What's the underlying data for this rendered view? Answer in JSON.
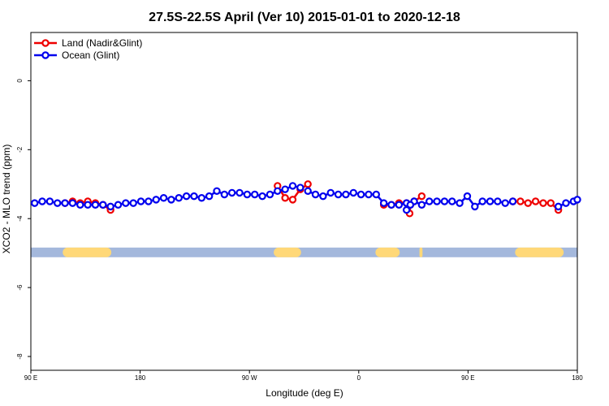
{
  "chart_data": {
    "type": "line",
    "title": "27.5S-22.5S April (Ver 10)   2015-01-01 to 2020-12-18",
    "xlabel": "Longitude (deg E)",
    "ylabel": "XCO2 - MLO trend (ppm)",
    "xlim": [
      90,
      450
    ],
    "ylim": [
      -8.4,
      1.4
    ],
    "x_ticks": [
      {
        "value": 90,
        "label": "90 E"
      },
      {
        "value": 162,
        "label": "180"
      },
      {
        "value": 234,
        "label": "90 W"
      },
      {
        "value": 306,
        "label": "0"
      },
      {
        "value": 378,
        "label": "90 E"
      },
      {
        "value": 450,
        "label": "180"
      }
    ],
    "y_ticks": [
      {
        "value": 0,
        "label": "0"
      },
      {
        "value": -2,
        "label": "-2"
      },
      {
        "value": -4,
        "label": "-4"
      },
      {
        "value": -6,
        "label": "-6"
      },
      {
        "value": -8,
        "label": "-8"
      }
    ],
    "legend": {
      "position": "top-left",
      "entries": [
        {
          "name": "Land (Nadir&Glint)",
          "color": "#ee0000"
        },
        {
          "name": "Ocean (Glint)",
          "color": "#0000ee"
        }
      ]
    },
    "colors": {
      "land": "#ee0000",
      "ocean": "#0000ee",
      "land_mask": "#ffd878",
      "ocean_mask": "#a4b8dc"
    },
    "mask_band": {
      "y_range": [
        -4.84,
        -5.12
      ],
      "land_segments": [
        [
          111,
          143
        ],
        [
          250,
          268
        ],
        [
          317,
          333
        ],
        [
          346,
          348
        ],
        [
          409,
          441
        ]
      ]
    },
    "series": [
      {
        "name": "Land (Nadir&Glint)",
        "color": "#ee0000",
        "segments": [
          [
            [
              112.5,
              -3.55
            ],
            [
              117.5,
              -3.5
            ],
            [
              122.5,
              -3.55
            ],
            [
              127.5,
              -3.5
            ],
            [
              132.5,
              -3.55
            ],
            [
              137.5,
              -3.6
            ],
            [
              142.5,
              -3.75
            ]
          ],
          [
            [
              252.5,
              -3.05
            ],
            [
              257.5,
              -3.4
            ],
            [
              262.5,
              -3.45
            ],
            [
              267.5,
              -3.15
            ],
            [
              272.5,
              -3.0
            ]
          ],
          [
            [
              322.5,
              -3.6
            ],
            [
              327.5,
              -3.6
            ],
            [
              332.5,
              -3.55
            ],
            [
              337.5,
              -3.55
            ],
            [
              342.5,
              -3.5
            ],
            [
              347.5,
              -3.35
            ]
          ],
          [
            [
              339.5,
              -3.85
            ],
            [
              340,
              -3.6
            ]
          ],
          [
            [
              407.5,
              -3.5
            ],
            [
              412.5,
              -3.5
            ],
            [
              417.5,
              -3.55
            ],
            [
              422.5,
              -3.5
            ],
            [
              427.5,
              -3.55
            ],
            [
              432.5,
              -3.55
            ],
            [
              437.5,
              -3.75
            ]
          ]
        ]
      },
      {
        "name": "Ocean (Glint)",
        "color": "#0000ee",
        "segments": [
          [
            [
              92.5,
              -3.55
            ],
            [
              97.5,
              -3.5
            ],
            [
              102.5,
              -3.5
            ],
            [
              107.5,
              -3.55
            ],
            [
              112.5,
              -3.55
            ],
            [
              117.5,
              -3.55
            ],
            [
              122.5,
              -3.6
            ],
            [
              127.5,
              -3.6
            ],
            [
              132.5,
              -3.6
            ],
            [
              137.5,
              -3.6
            ],
            [
              142.5,
              -3.65
            ],
            [
              147.5,
              -3.6
            ],
            [
              152.5,
              -3.55
            ],
            [
              157.5,
              -3.55
            ],
            [
              162.5,
              -3.5
            ],
            [
              167.5,
              -3.5
            ],
            [
              172.5,
              -3.45
            ],
            [
              177.5,
              -3.4
            ],
            [
              182.5,
              -3.45
            ],
            [
              187.5,
              -3.4
            ],
            [
              192.5,
              -3.35
            ],
            [
              197.5,
              -3.35
            ],
            [
              202.5,
              -3.4
            ],
            [
              207.5,
              -3.35
            ],
            [
              212.5,
              -3.2
            ],
            [
              217.5,
              -3.3
            ],
            [
              222.5,
              -3.25
            ],
            [
              227.5,
              -3.25
            ],
            [
              232.5,
              -3.3
            ],
            [
              237.5,
              -3.3
            ],
            [
              242.5,
              -3.35
            ],
            [
              247.5,
              -3.3
            ],
            [
              252.5,
              -3.2
            ],
            [
              257.5,
              -3.15
            ],
            [
              262.5,
              -3.05
            ],
            [
              267.5,
              -3.1
            ]
          ],
          [
            [
              272.5,
              -3.2
            ],
            [
              277.5,
              -3.3
            ],
            [
              282.5,
              -3.35
            ],
            [
              287.5,
              -3.25
            ],
            [
              292.5,
              -3.3
            ],
            [
              297.5,
              -3.3
            ],
            [
              302.5,
              -3.25
            ],
            [
              307.5,
              -3.3
            ],
            [
              312.5,
              -3.3
            ],
            [
              317.5,
              -3.3
            ],
            [
              322.5,
              -3.55
            ],
            [
              327.5,
              -3.6
            ],
            [
              332.5,
              -3.6
            ],
            [
              337.5,
              -3.55
            ],
            [
              342.5,
              -3.5
            ],
            [
              347.5,
              -3.6
            ],
            [
              352.5,
              -3.5
            ],
            [
              357.5,
              -3.5
            ],
            [
              362.5,
              -3.5
            ],
            [
              367.5,
              -3.5
            ],
            [
              372.5,
              -3.55
            ],
            [
              377.5,
              -3.35
            ],
            [
              382.5,
              -3.65
            ],
            [
              387.5,
              -3.5
            ],
            [
              392.5,
              -3.5
            ],
            [
              397.5,
              -3.5
            ],
            [
              402.5,
              -3.55
            ],
            [
              407.5,
              -3.5
            ]
          ],
          [
            [
              437.5,
              -3.65
            ],
            [
              442.5,
              -3.55
            ],
            [
              447.5,
              -3.5
            ],
            [
              450,
              -3.45
            ]
          ],
          [
            [
              337.5,
              -3.75
            ],
            [
              340,
              -3.6
            ]
          ]
        ]
      }
    ]
  }
}
